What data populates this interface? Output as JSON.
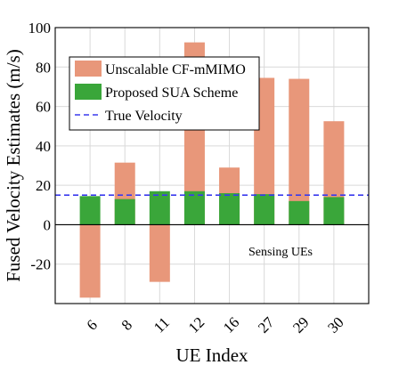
{
  "chart_data": {
    "type": "bar",
    "title": "",
    "xlabel": "UE Index",
    "ylabel": "Fused Velocity Estimates (m/s)",
    "categories": [
      "6",
      "8",
      "11",
      "12",
      "16",
      "27",
      "29",
      "30"
    ],
    "series": [
      {
        "name": "Unscalable CF-mMIMO",
        "color": "#e8977a",
        "values": [
          -37,
          31.5,
          -29,
          92.5,
          29,
          74.5,
          74,
          52.5
        ]
      },
      {
        "name": "Proposed SUA Scheme",
        "color": "#3aa63a",
        "values": [
          14.5,
          13,
          17,
          17,
          16,
          15.5,
          12,
          14
        ]
      }
    ],
    "reference_line": {
      "name": "True Velocity",
      "value": 15,
      "color": "#3a3aee",
      "style": "dashed"
    },
    "ylim": [
      -40,
      100
    ],
    "yticks": [
      -20,
      0,
      20,
      40,
      60,
      80,
      100
    ],
    "grid": true,
    "legend": "top-left",
    "annotation": "Sensing UEs"
  }
}
